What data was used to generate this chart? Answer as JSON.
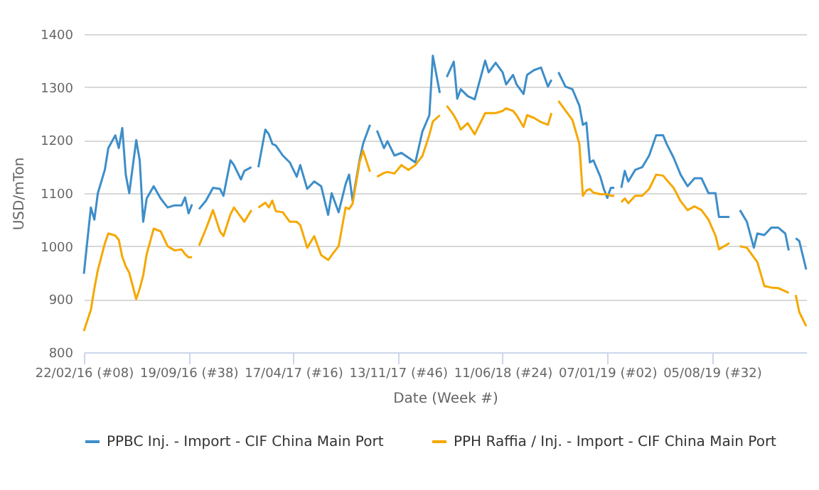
{
  "chart_data": {
    "type": "line",
    "xlabel": "Date (Week #)",
    "ylabel": "USD/mTon",
    "x": [
      "2016-02-22",
      "2016-03-07",
      "2016-03-14",
      "2016-03-21",
      "2016-04-04",
      "2016-04-11",
      "2016-04-25",
      "2016-05-02",
      "2016-05-09",
      "2016-05-16",
      "2016-05-23",
      "2016-06-06",
      "2016-06-13",
      "2016-06-20",
      "2016-06-27",
      "2016-07-11",
      "2016-07-25",
      "2016-08-08",
      "2016-08-22",
      "2016-09-05",
      "2016-09-12",
      "2016-09-19",
      "2016-09-26",
      "2016-10-03",
      "2016-10-10",
      "2016-10-24",
      "2016-11-07",
      "2016-11-21",
      "2016-11-28",
      "2016-12-12",
      "2016-12-19",
      "2017-01-02",
      "2017-01-09",
      "2017-01-23",
      "2017-01-30",
      "2017-02-06",
      "2017-02-20",
      "2017-02-27",
      "2017-03-06",
      "2017-03-13",
      "2017-03-27",
      "2017-04-10",
      "2017-04-24",
      "2017-05-01",
      "2017-05-15",
      "2017-05-29",
      "2017-06-12",
      "2017-06-26",
      "2017-07-03",
      "2017-07-17",
      "2017-07-31",
      "2017-08-07",
      "2017-08-14",
      "2017-08-28",
      "2017-09-04",
      "2017-09-18",
      "2017-09-25",
      "2017-10-02",
      "2017-10-16",
      "2017-10-23",
      "2017-11-06",
      "2017-11-20",
      "2017-12-04",
      "2017-12-18",
      "2018-01-01",
      "2018-01-15",
      "2018-01-22",
      "2018-02-05",
      "2018-02-12",
      "2018-02-19",
      "2018-03-05",
      "2018-03-12",
      "2018-03-19",
      "2018-04-02",
      "2018-04-16",
      "2018-05-07",
      "2018-05-14",
      "2018-05-28",
      "2018-06-11",
      "2018-06-18",
      "2018-07-02",
      "2018-07-09",
      "2018-07-23",
      "2018-07-30",
      "2018-08-13",
      "2018-08-27",
      "2018-09-10",
      "2018-09-17",
      "2018-09-24",
      "2018-10-01",
      "2018-10-15",
      "2018-10-29",
      "2018-11-12",
      "2018-11-19",
      "2018-11-26",
      "2018-12-03",
      "2018-12-10",
      "2018-12-24",
      "2018-12-31",
      "2019-01-07",
      "2019-01-14",
      "2019-01-21",
      "2019-01-28",
      "2019-02-04",
      "2019-02-11",
      "2019-02-18",
      "2019-03-04",
      "2019-03-18",
      "2019-04-01",
      "2019-04-15",
      "2019-04-29",
      "2019-05-06",
      "2019-05-20",
      "2019-06-03",
      "2019-06-17",
      "2019-07-01",
      "2019-07-15",
      "2019-07-29",
      "2019-08-12",
      "2019-08-19",
      "2019-09-09",
      "2019-09-23",
      "2019-09-30",
      "2019-10-14",
      "2019-10-28",
      "2019-11-04",
      "2019-11-18",
      "2019-12-02",
      "2019-12-16",
      "2019-12-30",
      "2020-01-06",
      "2020-01-13",
      "2020-01-20",
      "2020-01-27",
      "2020-02-10"
    ],
    "series": [
      {
        "name": "PPBC Inj. - Import - CIF China Main Port",
        "color": "#3d8ec9",
        "values": [
          948,
          1073,
          1050,
          1100,
          1144,
          1185,
          1209,
          1185,
          1223,
          1135,
          1100,
          1200,
          1162,
          1046,
          1090,
          1113,
          1090,
          1073,
          1077,
          1077,
          1092,
          1062,
          1079,
          null,
          1070,
          1086,
          1110,
          1108,
          1095,
          1162,
          1153,
          1126,
          1142,
          1149,
          null,
          1149,
          1220,
          1211,
          1193,
          1190,
          1171,
          1158,
          1131,
          1153,
          1108,
          1122,
          1113,
          1059,
          1100,
          1064,
          1117,
          1135,
          1086,
          1162,
          1193,
          1229,
          null,
          1218,
          1185,
          1198,
          1171,
          1176,
          1167,
          1158,
          1216,
          1247,
          1359,
          1289,
          null,
          1319,
          1348,
          1278,
          1296,
          1283,
          1277,
          1350,
          1328,
          1346,
          1328,
          1305,
          1323,
          1305,
          1287,
          1323,
          1332,
          1337,
          1301,
          1314,
          null,
          1328,
          1301,
          1296,
          1265,
          1229,
          1233,
          1158,
          1162,
          1131,
          1108,
          1091,
          1110,
          1110,
          null,
          1110,
          1142,
          1122,
          1144,
          1149,
          1171,
          1209,
          1209,
          1193,
          1167,
          1135,
          1113,
          1128,
          1128,
          1100,
          1100,
          1055,
          1055,
          null,
          1068,
          1046,
          997,
          1024,
          1021,
          1035,
          1035,
          1024,
          992,
          null,
          1015,
          1010,
          956
        ]
      },
      {
        "name": "PPH Raffia / Inj. - Import - CIF China Main Port",
        "color": "#f5a800",
        "values": [
          840,
          880,
          920,
          955,
          1005,
          1024,
          1020,
          1012,
          980,
          962,
          950,
          900,
          920,
          945,
          985,
          1033,
          1028,
          1000,
          992,
          994,
          985,
          979,
          979,
          null,
          1001,
          1033,
          1068,
          1028,
          1019,
          1060,
          1073,
          1055,
          1046,
          1068,
          null,
          1073,
          1082,
          1073,
          1086,
          1066,
          1064,
          1046,
          1046,
          1040,
          997,
          1019,
          983,
          974,
          983,
          1000,
          1073,
          1070,
          1080,
          1158,
          1180,
          1140,
          null,
          1131,
          1138,
          1140,
          1137,
          1153,
          1144,
          1153,
          1170,
          1210,
          1235,
          1247,
          null,
          1265,
          1247,
          1235,
          1220,
          1232,
          1211,
          1251,
          1251,
          1251,
          1255,
          1260,
          1255,
          1247,
          1225,
          1247,
          1242,
          1234,
          1229,
          1251,
          null,
          1274,
          1256,
          1238,
          1193,
          1095,
          1105,
          1108,
          1101,
          1098,
          1098,
          1098,
          1095,
          1095,
          null,
          1083,
          1090,
          1081,
          1095,
          1095,
          1108,
          1135,
          1133,
          1125,
          1110,
          1085,
          1068,
          1075,
          1068,
          1050,
          1020,
          994,
          1006,
          null,
          1000,
          997,
          979,
          970,
          925,
          922,
          921,
          915,
          912,
          null,
          908,
          876,
          849
        ]
      }
    ],
    "xlim": [
      "2016-02-22",
      "2020-02-10"
    ],
    "xticks": [
      {
        "value": "2016-02-22",
        "label": "22/02/16 (#08)"
      },
      {
        "value": "2016-09-19",
        "label": "19/09/16 (#38)"
      },
      {
        "value": "2017-04-17",
        "label": "17/04/17 (#16)"
      },
      {
        "value": "2017-11-13",
        "label": "13/11/17 (#46)"
      },
      {
        "value": "2018-06-11",
        "label": "11/06/18 (#24)"
      },
      {
        "value": "2019-01-07",
        "label": "07/01/19 (#02)"
      },
      {
        "value": "2019-08-05",
        "label": "05/08/19 (#32)"
      }
    ],
    "ylim": [
      800,
      1400
    ],
    "yticks": [
      800,
      900,
      1000,
      1100,
      1200,
      1300,
      1400
    ],
    "grid": "y",
    "legend": "bottom",
    "line_style": "solid",
    "marker": "none"
  }
}
